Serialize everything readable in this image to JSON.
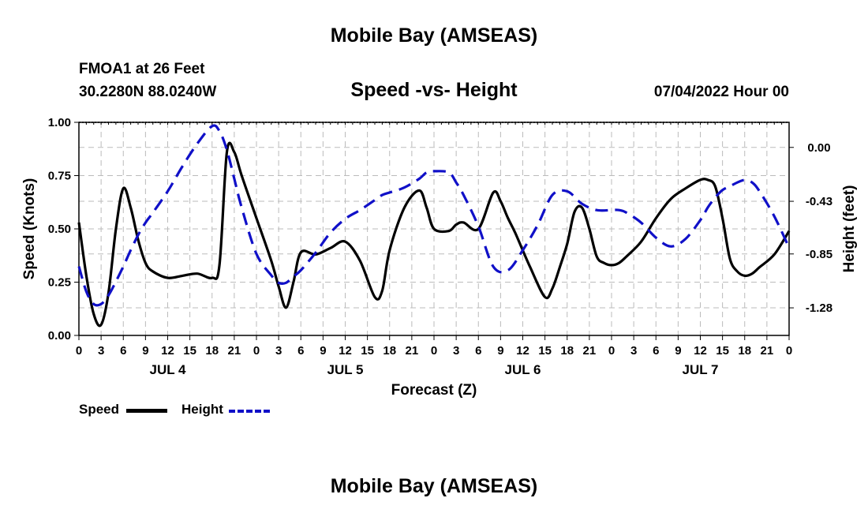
{
  "header": {
    "title": "Mobile Bay (AMSEAS)",
    "station": "FMOA1 at 26 Feet",
    "coords": "30.2280N  88.0240W",
    "chart_subtitle": "Speed -vs- Height",
    "datetime": "07/04/2022 Hour 00"
  },
  "legend": {
    "speed_label": "Speed",
    "height_label": "Height"
  },
  "footer": {
    "title": "Mobile Bay (AMSEAS)"
  },
  "colors": {
    "speed": "#000000",
    "height": "#1010c8",
    "grid": "#bbbbbb"
  },
  "chart_data": {
    "type": "line",
    "title": "Speed -vs- Height",
    "xlabel": "Forecast (Z)",
    "ylabel": "Speed (Knots)",
    "y2label": "Height (feet)",
    "xlim": [
      0,
      96
    ],
    "ylim": [
      0,
      1.0
    ],
    "y2lim": [
      -1.5,
      0.2
    ],
    "x_tick_labels": [
      "0",
      "3",
      "6",
      "9",
      "12",
      "15",
      "18",
      "21",
      "0",
      "3",
      "6",
      "9",
      "12",
      "15",
      "18",
      "21",
      "0",
      "3",
      "6",
      "9",
      "12",
      "15",
      "18",
      "21",
      "0",
      "3",
      "6",
      "9",
      "12",
      "15",
      "18",
      "21",
      "0"
    ],
    "day_labels": [
      {
        "x": 12,
        "label": "JUL 4"
      },
      {
        "x": 36,
        "label": "JUL 5"
      },
      {
        "x": 60,
        "label": "JUL 6"
      },
      {
        "x": 84,
        "label": "JUL 7"
      }
    ],
    "y_ticks": [
      "0.00",
      "0.25",
      "0.50",
      "0.75",
      "1.00"
    ],
    "y2_ticks": [
      "0.00",
      "-0.43",
      "-0.85",
      "-1.28"
    ],
    "series": [
      {
        "name": "Speed",
        "axis": "left",
        "style": "solid",
        "x": [
          0,
          1,
          2,
          3,
          4,
          5,
          6,
          7,
          8,
          9,
          10,
          12,
          14,
          16,
          18,
          19,
          20,
          21,
          22,
          24,
          26,
          27,
          28,
          29,
          30,
          32,
          34,
          36,
          38,
          40,
          41,
          42,
          44,
          46,
          47,
          48,
          50,
          51,
          52,
          54,
          56,
          57,
          58,
          59,
          61,
          63,
          64,
          65,
          66,
          67,
          68,
          69,
          70,
          71,
          72,
          73,
          74,
          76,
          78,
          80,
          82,
          84,
          85,
          86,
          87,
          88,
          89,
          90,
          91,
          92,
          94,
          96
        ],
        "values": [
          0.53,
          0.28,
          0.1,
          0.05,
          0.2,
          0.5,
          0.69,
          0.6,
          0.45,
          0.34,
          0.3,
          0.27,
          0.28,
          0.29,
          0.27,
          0.33,
          0.86,
          0.86,
          0.75,
          0.55,
          0.35,
          0.23,
          0.13,
          0.25,
          0.39,
          0.38,
          0.41,
          0.44,
          0.35,
          0.18,
          0.21,
          0.4,
          0.6,
          0.68,
          0.6,
          0.5,
          0.49,
          0.52,
          0.53,
          0.5,
          0.67,
          0.63,
          0.55,
          0.48,
          0.32,
          0.18,
          0.22,
          0.32,
          0.43,
          0.58,
          0.6,
          0.5,
          0.37,
          0.34,
          0.33,
          0.34,
          0.37,
          0.44,
          0.55,
          0.64,
          0.69,
          0.73,
          0.73,
          0.7,
          0.55,
          0.36,
          0.3,
          0.28,
          0.29,
          0.32,
          0.38,
          0.49
        ]
      },
      {
        "name": "Height",
        "axis": "right",
        "style": "dashed",
        "x": [
          0,
          1,
          2,
          3,
          4,
          5,
          6,
          7,
          8,
          9,
          10,
          12,
          14,
          16,
          18,
          19,
          20,
          21,
          22,
          24,
          26,
          27,
          28,
          29,
          30,
          32,
          34,
          36,
          38,
          40,
          41,
          42,
          44,
          46,
          47,
          48,
          50,
          51,
          52,
          54,
          56,
          58,
          60,
          62,
          64,
          66,
          68,
          70,
          72,
          73,
          74,
          76,
          78,
          80,
          82,
          84,
          85,
          86,
          87,
          88,
          89,
          90,
          91,
          92,
          94,
          96
        ],
        "values": [
          -0.95,
          -1.15,
          -1.25,
          -1.25,
          -1.18,
          -1.07,
          -0.95,
          -0.82,
          -0.7,
          -0.6,
          -0.52,
          -0.35,
          -0.15,
          0.03,
          0.17,
          0.13,
          -0.02,
          -0.25,
          -0.48,
          -0.85,
          -1.02,
          -1.08,
          -1.08,
          -1.03,
          -0.98,
          -0.84,
          -0.68,
          -0.57,
          -0.5,
          -0.42,
          -0.38,
          -0.36,
          -0.32,
          -0.25,
          -0.2,
          -0.19,
          -0.2,
          -0.28,
          -0.38,
          -0.63,
          -0.95,
          -0.98,
          -0.82,
          -0.62,
          -0.38,
          -0.35,
          -0.45,
          -0.5,
          -0.5,
          -0.5,
          -0.52,
          -0.6,
          -0.72,
          -0.79,
          -0.73,
          -0.58,
          -0.48,
          -0.4,
          -0.34,
          -0.31,
          -0.28,
          -0.26,
          -0.28,
          -0.35,
          -0.55,
          -0.8
        ]
      }
    ]
  }
}
